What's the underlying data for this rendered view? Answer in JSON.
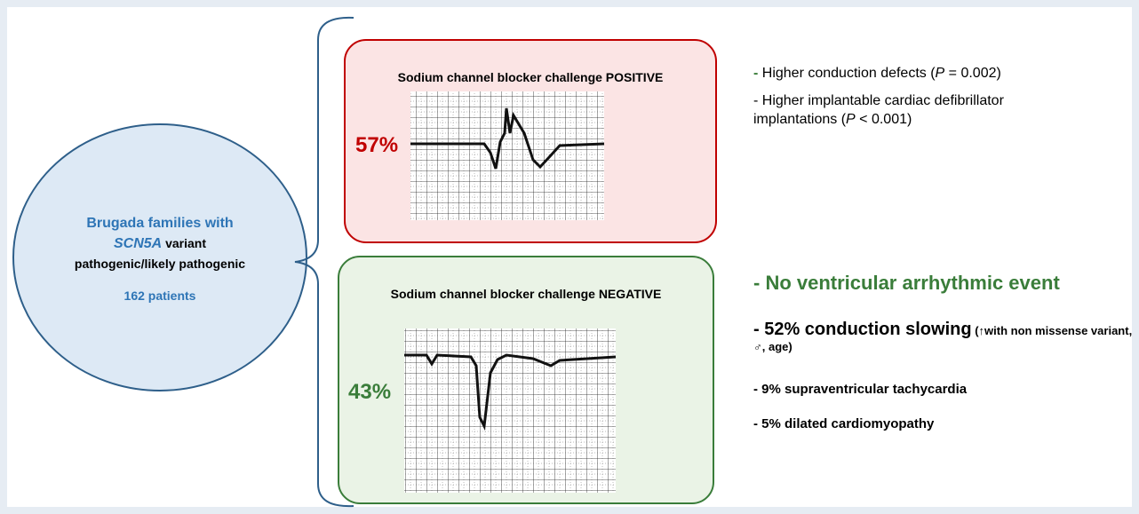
{
  "cohort": {
    "line1": "Brugada families with",
    "gene": "SCN5A",
    "line2_rest": " variant",
    "line3": "pathogenic/likely pathogenic",
    "patients": "162 patients"
  },
  "positive": {
    "title": "Sodium channel blocker challenge POSITIVE",
    "percent": "57%",
    "findings": [
      {
        "dash": "-",
        "pre": " Higher conduction defects (",
        "italic": "P",
        "post": " = 0.002)"
      },
      {
        "dash": "-",
        "pre": " Higher implantable cardiac defibrillator implantations (",
        "italic": "P",
        "post": " < 0.001)"
      }
    ]
  },
  "negative": {
    "title": "Sodium channel blocker challenge NEGATIVE",
    "percent": "43%",
    "headline": "- No ventricular arrhythmic event",
    "slowing": {
      "main": "- 52% conduction slowing",
      "note": " (↑with non missense variant, ♂, age)"
    },
    "findings": [
      "- 9% supraventricular tachycardia",
      "- 5% dilated cardiomyopathy"
    ]
  }
}
